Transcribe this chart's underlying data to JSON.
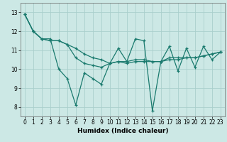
{
  "bg_color": "#cce8e5",
  "grid_color": "#aacfcc",
  "line_color": "#1a7a6e",
  "xlabel": "Humidex (Indice chaleur)",
  "xlim": [
    -0.5,
    23.5
  ],
  "ylim": [
    7.5,
    13.5
  ],
  "yticks": [
    8,
    9,
    10,
    11,
    12,
    13
  ],
  "xticks": [
    0,
    1,
    2,
    3,
    4,
    5,
    6,
    7,
    8,
    9,
    10,
    11,
    12,
    13,
    14,
    15,
    16,
    17,
    18,
    19,
    20,
    21,
    22,
    23
  ],
  "series": [
    [
      12.9,
      12.0,
      11.6,
      11.6,
      10.0,
      9.5,
      8.1,
      9.8,
      9.5,
      9.2,
      10.3,
      11.1,
      10.4,
      11.6,
      11.5,
      7.8,
      10.4,
      11.2,
      9.9,
      11.1,
      10.1,
      11.2,
      10.5,
      10.9
    ],
    [
      12.9,
      12.0,
      11.6,
      11.5,
      11.5,
      11.3,
      11.1,
      10.8,
      10.6,
      10.5,
      10.3,
      10.4,
      10.3,
      10.4,
      10.4,
      10.4,
      10.4,
      10.5,
      10.5,
      10.6,
      10.6,
      10.7,
      10.8,
      10.9
    ],
    [
      12.9,
      12.0,
      11.6,
      11.5,
      11.5,
      11.3,
      10.6,
      10.3,
      10.2,
      10.1,
      10.3,
      10.4,
      10.4,
      10.5,
      10.5,
      10.4,
      10.4,
      10.6,
      10.6,
      10.6,
      10.6,
      10.7,
      10.8,
      10.9
    ]
  ]
}
